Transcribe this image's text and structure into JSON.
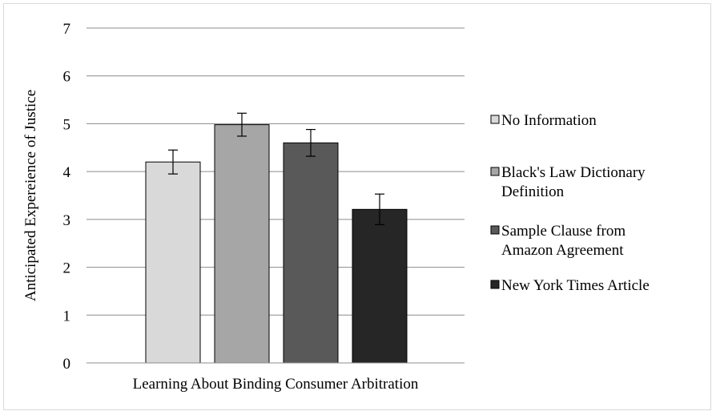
{
  "chart_data": {
    "type": "bar",
    "title": "",
    "xlabel": "Learning About Binding Consumer Arbitration",
    "ylabel": "Anticipated Expereience of Justice",
    "ylim": [
      0,
      7
    ],
    "yticks": [
      0,
      1,
      2,
      3,
      4,
      5,
      6,
      7
    ],
    "grid": true,
    "legend_position": "right",
    "categories": [
      "Learning About Binding Consumer Arbitration"
    ],
    "series": [
      {
        "name": "No Information",
        "legend_lines": [
          "No Information"
        ],
        "values": [
          4.2
        ],
        "error": [
          0.25
        ],
        "color": "#d9d9d9"
      },
      {
        "name": "Black's Law Dictionary Definition",
        "legend_lines": [
          "Black's Law Dictionary",
          "Definition"
        ],
        "values": [
          4.98
        ],
        "error": [
          0.24
        ],
        "color": "#a6a6a6"
      },
      {
        "name": "Sample Clause from Amazon Agreement",
        "legend_lines": [
          "Sample Clause from",
          "Amazon Agreement"
        ],
        "values": [
          4.6
        ],
        "error": [
          0.28
        ],
        "color": "#595959"
      },
      {
        "name": "New York Times Article",
        "legend_lines": [
          "New York Times Article"
        ],
        "values": [
          3.21
        ],
        "error": [
          0.32
        ],
        "color": "#262626"
      }
    ]
  }
}
